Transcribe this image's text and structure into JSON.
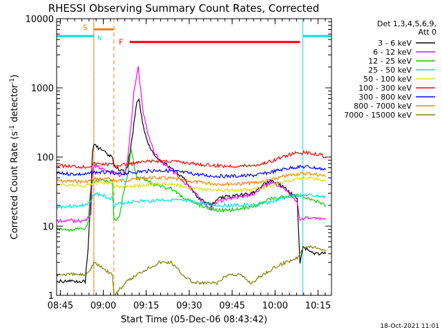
{
  "chart_data": {
    "type": "line",
    "title": "RHESSI Observing Summary Count Rates, Corrected",
    "xlabel": "Start Time (05-Dec-06 08:43:42)",
    "ylabel_main": "Corrected Count Rate (s",
    "ylabel_sup": "-1",
    "ylabel_mid": " detector",
    "ylabel_end": ")",
    "x_unit": "minutes after 08:43:42",
    "xlim": [
      0,
      96
    ],
    "ylim": [
      1,
      10000
    ],
    "y_scale": "log",
    "x_ticks": [
      {
        "label": "08:45",
        "value": 1.3
      },
      {
        "label": "09:00",
        "value": 16.3
      },
      {
        "label": "09:15",
        "value": 31.3
      },
      {
        "label": "09:30",
        "value": 46.3
      },
      {
        "label": "09:45",
        "value": 61.3
      },
      {
        "label": "10:00",
        "value": 76.3
      },
      {
        "label": "10:15",
        "value": 91.3
      }
    ],
    "y_ticks": [
      {
        "label": "1",
        "value": 1
      },
      {
        "label": "10",
        "value": 10
      },
      {
        "label": "100",
        "value": 100
      },
      {
        "label": "1000",
        "value": 1000
      },
      {
        "label": "10000",
        "value": 10000
      }
    ],
    "legend_title_1": "Det 1,3,4,5,6,9,",
    "legend_title_2": "Att 0",
    "legend_position": "right",
    "timestamp": "18-Oct-2021 11:01",
    "night_periods": [
      [
        0,
        13
      ],
      [
        86,
        96
      ]
    ],
    "saa_period": [
      13,
      20
    ],
    "flare_period": [
      25.5,
      85
    ],
    "annotations": [
      {
        "text": "S",
        "x": 10,
        "y": 7500,
        "color": "#ff8000"
      },
      {
        "text": "N",
        "x": 15,
        "y": 5400,
        "color": "#00e0e0"
      },
      {
        "text": "F",
        "x": 22.5,
        "y": 4600,
        "color": "#ff0000"
      }
    ],
    "series": [
      {
        "name": "3 - 6 keV",
        "color": "#000000",
        "points": [
          [
            0,
            1.6
          ],
          [
            10,
            1.6
          ],
          [
            11,
            5
          ],
          [
            12,
            30
          ],
          [
            12.5,
            120
          ],
          [
            13,
            150
          ],
          [
            19.5,
            100
          ],
          [
            20,
            75
          ],
          [
            22,
            65
          ],
          [
            24,
            60
          ],
          [
            25,
            80
          ],
          [
            26,
            150
          ],
          [
            27,
            300
          ],
          [
            28,
            600
          ],
          [
            28.5,
            700
          ],
          [
            29,
            600
          ],
          [
            30,
            300
          ],
          [
            32,
            150
          ],
          [
            34,
            110
          ],
          [
            36,
            90
          ],
          [
            38,
            80
          ],
          [
            40,
            70
          ],
          [
            42,
            60
          ],
          [
            44,
            50
          ],
          [
            46,
            40
          ],
          [
            48,
            30
          ],
          [
            50,
            25
          ],
          [
            52,
            22
          ],
          [
            54,
            20
          ],
          [
            56,
            25
          ],
          [
            60,
            27
          ],
          [
            64,
            28
          ],
          [
            68,
            30
          ],
          [
            70,
            33
          ],
          [
            72,
            40
          ],
          [
            75,
            45
          ],
          [
            78,
            40
          ],
          [
            80,
            35
          ],
          [
            84,
            25
          ],
          [
            85,
            3
          ],
          [
            86,
            5
          ],
          [
            90,
            4
          ],
          [
            94,
            4
          ]
        ]
      },
      {
        "name": "6 - 12 keV",
        "color": "#ff00ff",
        "points": [
          [
            0,
            12
          ],
          [
            10,
            12
          ],
          [
            12,
            15
          ],
          [
            12.5,
            60
          ],
          [
            13,
            75
          ],
          [
            19.5,
            60
          ],
          [
            20,
            60
          ],
          [
            22,
            55
          ],
          [
            24,
            60
          ],
          [
            25,
            110
          ],
          [
            26,
            300
          ],
          [
            27,
            900
          ],
          [
            28,
            1600
          ],
          [
            28.5,
            2000
          ],
          [
            29,
            1300
          ],
          [
            30,
            500
          ],
          [
            32,
            200
          ],
          [
            34,
            120
          ],
          [
            36,
            90
          ],
          [
            38,
            75
          ],
          [
            40,
            65
          ],
          [
            42,
            55
          ],
          [
            44,
            45
          ],
          [
            46,
            38
          ],
          [
            48,
            32
          ],
          [
            50,
            25
          ],
          [
            52,
            20
          ],
          [
            54,
            18
          ],
          [
            56,
            22
          ],
          [
            60,
            25
          ],
          [
            64,
            27
          ],
          [
            68,
            28
          ],
          [
            70,
            32
          ],
          [
            72,
            38
          ],
          [
            75,
            42
          ],
          [
            78,
            38
          ],
          [
            80,
            34
          ],
          [
            84,
            22
          ],
          [
            85,
            12
          ],
          [
            86,
            13
          ],
          [
            90,
            13
          ],
          [
            94,
            13
          ]
        ]
      },
      {
        "name": "12 - 25 keV",
        "color": "#00cc00",
        "points": [
          [
            0,
            9
          ],
          [
            10,
            9
          ],
          [
            11,
            12
          ],
          [
            12,
            40
          ],
          [
            13,
            45
          ],
          [
            19.5,
            45
          ],
          [
            20,
            12
          ],
          [
            22,
            14
          ],
          [
            23,
            25
          ],
          [
            24,
            40
          ],
          [
            25,
            60
          ],
          [
            26,
            130
          ],
          [
            27,
            80
          ],
          [
            28,
            50
          ],
          [
            30,
            50
          ],
          [
            32,
            45
          ],
          [
            34,
            40
          ],
          [
            36,
            38
          ],
          [
            38,
            36
          ],
          [
            40,
            35
          ],
          [
            42,
            30
          ],
          [
            44,
            27
          ],
          [
            46,
            24
          ],
          [
            48,
            22
          ],
          [
            50,
            20
          ],
          [
            52,
            19
          ],
          [
            54,
            18
          ],
          [
            56,
            17
          ],
          [
            60,
            17
          ],
          [
            64,
            18
          ],
          [
            68,
            19
          ],
          [
            70,
            20
          ],
          [
            72,
            22
          ],
          [
            75,
            25
          ],
          [
            78,
            26
          ],
          [
            80,
            27
          ],
          [
            84,
            28
          ],
          [
            86,
            26
          ],
          [
            90,
            24
          ],
          [
            94,
            20
          ]
        ]
      },
      {
        "name": "25 - 50 keV",
        "color": "#00e0e0",
        "points": [
          [
            0,
            19
          ],
          [
            10,
            20
          ],
          [
            12,
            22
          ],
          [
            13,
            30
          ],
          [
            19.5,
            25
          ],
          [
            20,
            20
          ],
          [
            24,
            22
          ],
          [
            28,
            23
          ],
          [
            32,
            23
          ],
          [
            36,
            24
          ],
          [
            40,
            24
          ],
          [
            44,
            23
          ],
          [
            48,
            22
          ],
          [
            52,
            21
          ],
          [
            56,
            20
          ],
          [
            60,
            20
          ],
          [
            64,
            20
          ],
          [
            68,
            20
          ],
          [
            72,
            21
          ],
          [
            76,
            23
          ],
          [
            80,
            26
          ],
          [
            84,
            28
          ],
          [
            88,
            28
          ],
          [
            92,
            27
          ],
          [
            94,
            26
          ]
        ]
      },
      {
        "name": "50 - 100 keV",
        "color": "#e0e000",
        "points": [
          [
            0,
            40
          ],
          [
            10,
            38
          ],
          [
            12,
            40
          ],
          [
            13,
            42
          ],
          [
            19.5,
            42
          ],
          [
            20,
            38
          ],
          [
            24,
            37
          ],
          [
            28,
            38
          ],
          [
            32,
            40
          ],
          [
            36,
            41
          ],
          [
            40,
            40
          ],
          [
            44,
            38
          ],
          [
            48,
            35
          ],
          [
            52,
            34
          ],
          [
            56,
            33
          ],
          [
            60,
            33
          ],
          [
            64,
            33
          ],
          [
            68,
            34
          ],
          [
            72,
            36
          ],
          [
            76,
            40
          ],
          [
            80,
            44
          ],
          [
            84,
            48
          ],
          [
            88,
            50
          ],
          [
            92,
            48
          ],
          [
            94,
            45
          ]
        ]
      },
      {
        "name": "100 - 300 keV",
        "color": "#ff0000",
        "points": [
          [
            0,
            75
          ],
          [
            10,
            72
          ],
          [
            12,
            75
          ],
          [
            13,
            80
          ],
          [
            19.5,
            78
          ],
          [
            20,
            75
          ],
          [
            24,
            78
          ],
          [
            28,
            82
          ],
          [
            32,
            86
          ],
          [
            36,
            88
          ],
          [
            40,
            87
          ],
          [
            44,
            84
          ],
          [
            48,
            80
          ],
          [
            52,
            77
          ],
          [
            56,
            75
          ],
          [
            60,
            74
          ],
          [
            64,
            74
          ],
          [
            68,
            75
          ],
          [
            72,
            80
          ],
          [
            76,
            90
          ],
          [
            80,
            105
          ],
          [
            84,
            115
          ],
          [
            88,
            115
          ],
          [
            92,
            108
          ],
          [
            94,
            100
          ]
        ]
      },
      {
        "name": "300 - 800 keV",
        "color": "#0000ff",
        "points": [
          [
            0,
            58
          ],
          [
            10,
            56
          ],
          [
            12,
            58
          ],
          [
            13,
            60
          ],
          [
            19.5,
            60
          ],
          [
            20,
            56
          ],
          [
            24,
            58
          ],
          [
            28,
            61
          ],
          [
            32,
            63
          ],
          [
            36,
            64
          ],
          [
            40,
            63
          ],
          [
            44,
            60
          ],
          [
            48,
            57
          ],
          [
            52,
            54
          ],
          [
            56,
            53
          ],
          [
            60,
            53
          ],
          [
            64,
            53
          ],
          [
            68,
            54
          ],
          [
            72,
            57
          ],
          [
            76,
            62
          ],
          [
            80,
            68
          ],
          [
            84,
            72
          ],
          [
            88,
            72
          ],
          [
            92,
            68
          ],
          [
            94,
            65
          ]
        ]
      },
      {
        "name": "800 - 7000 keV",
        "color": "#ff8000",
        "points": [
          [
            0,
            45
          ],
          [
            10,
            44
          ],
          [
            12,
            46
          ],
          [
            13,
            48
          ],
          [
            19.5,
            48
          ],
          [
            20,
            45
          ],
          [
            24,
            46
          ],
          [
            28,
            48
          ],
          [
            32,
            50
          ],
          [
            36,
            50
          ],
          [
            40,
            49
          ],
          [
            44,
            46
          ],
          [
            48,
            44
          ],
          [
            52,
            42
          ],
          [
            56,
            41
          ],
          [
            60,
            41
          ],
          [
            64,
            41
          ],
          [
            68,
            42
          ],
          [
            72,
            44
          ],
          [
            76,
            48
          ],
          [
            80,
            53
          ],
          [
            84,
            57
          ],
          [
            88,
            58
          ],
          [
            92,
            55
          ],
          [
            94,
            52
          ]
        ]
      },
      {
        "name": "7000 - 15000 keV",
        "color": "#808000",
        "points": [
          [
            0,
            2
          ],
          [
            10,
            2
          ],
          [
            12,
            2.5
          ],
          [
            13,
            3
          ],
          [
            19.5,
            2
          ],
          [
            20,
            1
          ],
          [
            24,
            1.5
          ],
          [
            28,
            2
          ],
          [
            32,
            2.5
          ],
          [
            36,
            3
          ],
          [
            40,
            3
          ],
          [
            44,
            2
          ],
          [
            48,
            1.5
          ],
          [
            52,
            1.5
          ],
          [
            56,
            1.5
          ],
          [
            60,
            2
          ],
          [
            64,
            2
          ],
          [
            68,
            1.5
          ],
          [
            72,
            2
          ],
          [
            76,
            2.5
          ],
          [
            80,
            3
          ],
          [
            84,
            3.5
          ],
          [
            86,
            5
          ],
          [
            90,
            5
          ],
          [
            94,
            4.5
          ]
        ]
      }
    ]
  }
}
